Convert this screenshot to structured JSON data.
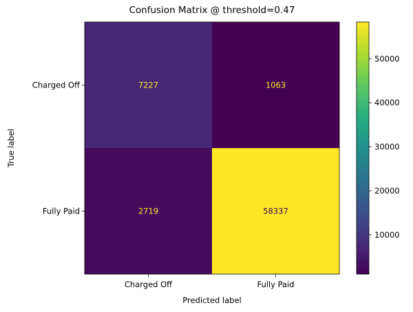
{
  "chart_data": {
    "type": "heatmap",
    "title": "Confusion Matrix @ threshold=0.47",
    "xlabel": "Predicted label",
    "ylabel": "True label",
    "x_categories": [
      "Charged Off",
      "Fully Paid"
    ],
    "y_categories": [
      "Charged Off",
      "Fully Paid"
    ],
    "values": [
      [
        7227,
        1063
      ],
      [
        2719,
        58337
      ]
    ],
    "colormap": "viridis",
    "colorbar": {
      "min": 1063,
      "max": 58337,
      "ticks": [
        10000,
        20000,
        30000,
        40000,
        50000
      ]
    },
    "text_color_dark_cells": "#fde725",
    "text_color_light_cells": "#440154",
    "grid": false,
    "legend": "colorbar-right"
  }
}
